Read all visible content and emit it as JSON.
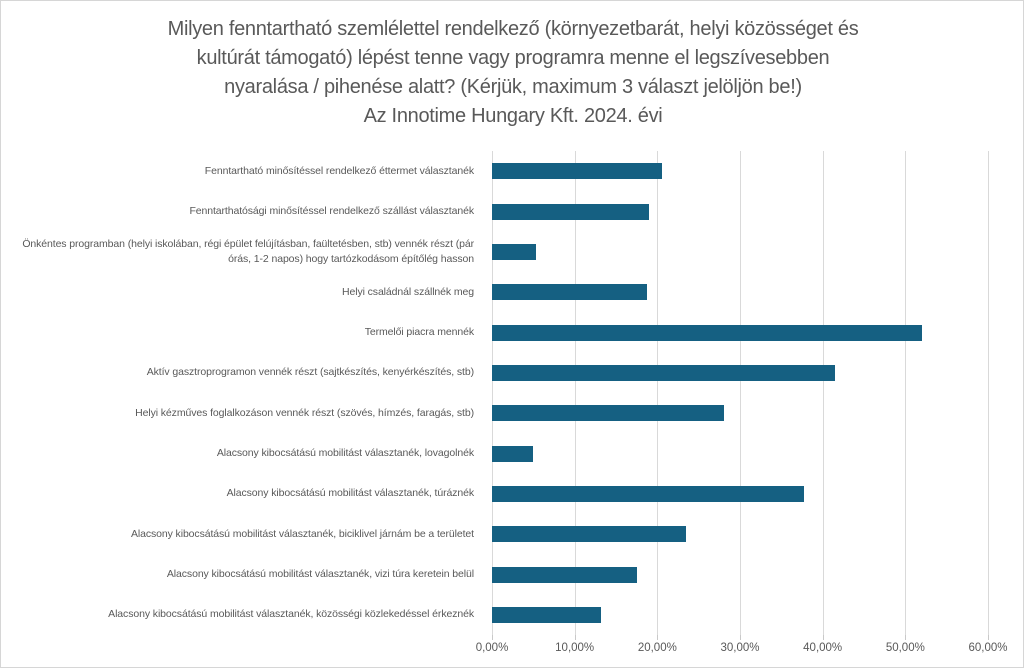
{
  "chart": {
    "title_lines": [
      "Milyen fenntartható szemlélettel rendelkező (környezetbarát, helyi közösséget és",
      "kultúrát támogató) lépést tenne vagy programra menne el legszívesebben",
      "nyaralása / pihenése alatt?  (Kérjük, maximum 3 választ jelöljön be!)",
      "Az Innotime Hungary Kft. 2024. évi"
    ],
    "colors": {
      "bar": "#156082",
      "text": "#595959",
      "gridline": "#d9d9d9",
      "border": "#d6d6d6"
    }
  },
  "chart_data": {
    "type": "bar",
    "orientation": "horizontal",
    "title": "Milyen fenntartható szemlélettel rendelkező (környezetbarát, helyi közösséget és kultúrát támogató) lépést tenne vagy programra menne el legszívesebben nyaralása / pihenése alatt? (Kérjük, maximum 3 választ jelöljön be!) Az Innotime Hungary Kft. 2024. évi",
    "categories": [
      "Fenntartható minősítéssel rendelkező éttermet választanék",
      "Fenntarthatósági minősítéssel rendelkező szállást választanék",
      "Önkéntes programban (helyi iskolában, régi épület felújításban, faültetésben, stb) vennék részt (pár órás, 1-2 napos) hogy tartózkodásom építőlég hasson",
      "Helyi családnál szállnék meg",
      "Termelői piacra mennék",
      "Aktív gasztroprogramon vennék részt (sajtkészítés, kenyérkészítés, stb)",
      "Helyi kézműves foglalkozáson vennék részt (szövés, hímzés, faragás, stb)",
      "Alacsony kibocsátású mobilitást választanék, lovagolnék",
      "Alacsony kibocsátású mobilitást választanék, túráznék",
      "Alacsony kibocsátású mobilitást választanék, biciklivel járnám be a területet",
      "Alacsony kibocsátású mobilitást választanék, vizi túra keretein belül",
      "Alacsony kibocsátású mobilitást választanék, közösségi közlekedéssel érkeznék"
    ],
    "values": [
      20.6,
      19.0,
      5.3,
      18.7,
      52.0,
      41.5,
      28.1,
      4.9,
      37.7,
      23.5,
      17.5,
      13.2
    ],
    "value_unit": "%",
    "xlim": [
      0,
      60
    ],
    "x_tick_values": [
      0,
      10,
      20,
      30,
      40,
      50,
      60
    ],
    "x_tick_labels": [
      "0,00%",
      "10,00%",
      "20,00%",
      "30,00%",
      "40,00%",
      "50,00%",
      "60,00%"
    ],
    "xlabel": "",
    "ylabel": "",
    "grid": true,
    "legend": false,
    "bar_color": "#156082"
  }
}
